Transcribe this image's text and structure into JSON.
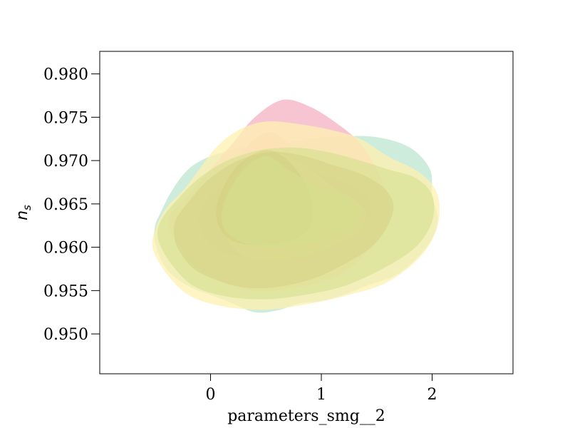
{
  "chart_data": {
    "type": "contour",
    "title": "",
    "xlabel": "parameters_smg__2",
    "ylabel_main": "n",
    "ylabel_sub": "s",
    "xlim": [
      -1.0,
      2.73
    ],
    "ylim": [
      0.9454,
      0.9826
    ],
    "xticks": [
      0,
      1,
      2
    ],
    "xtick_labels": [
      "0",
      "1",
      "2"
    ],
    "yticks": [
      0.95,
      0.955,
      0.96,
      0.965,
      0.97,
      0.975,
      0.98
    ],
    "ytick_labels": [
      "0.950",
      "0.955",
      "0.960",
      "0.965",
      "0.970",
      "0.975",
      "0.980"
    ],
    "grid": false,
    "series": [
      {
        "color": "#b9e4cc",
        "opacity": 0.7,
        "contours": [
          [
            [
              -0.45,
              0.964
            ],
            [
              -0.35,
              0.9665
            ],
            [
              -0.2,
              0.969
            ],
            [
              0.0,
              0.9705
            ],
            [
              0.3,
              0.9715
            ],
            [
              0.6,
              0.9718
            ],
            [
              0.9,
              0.9725
            ],
            [
              1.2,
              0.9728
            ],
            [
              1.5,
              0.9727
            ],
            [
              1.8,
              0.9715
            ],
            [
              1.98,
              0.969
            ],
            [
              2.0,
              0.966
            ],
            [
              2.05,
              0.963
            ],
            [
              1.95,
              0.96
            ],
            [
              1.7,
              0.957
            ],
            [
              1.4,
              0.9555
            ],
            [
              1.2,
              0.9545
            ],
            [
              1.0,
              0.9538
            ],
            [
              0.8,
              0.9535
            ],
            [
              0.6,
              0.9527
            ],
            [
              0.4,
              0.9525
            ],
            [
              0.2,
              0.9535
            ],
            [
              0.0,
              0.9545
            ],
            [
              -0.2,
              0.9555
            ],
            [
              -0.4,
              0.9575
            ],
            [
              -0.5,
              0.9605
            ],
            [
              -0.5,
              0.9625
            ]
          ],
          [
            [
              -0.1,
              0.964
            ],
            [
              0.0,
              0.966
            ],
            [
              0.2,
              0.9675
            ],
            [
              0.5,
              0.9685
            ],
            [
              0.8,
              0.969
            ],
            [
              1.1,
              0.968
            ],
            [
              1.35,
              0.9665
            ],
            [
              1.45,
              0.965
            ],
            [
              1.4,
              0.963
            ],
            [
              1.2,
              0.9615
            ],
            [
              0.9,
              0.96
            ],
            [
              0.6,
              0.959
            ],
            [
              0.35,
              0.9588
            ],
            [
              0.1,
              0.9595
            ],
            [
              -0.05,
              0.961
            ],
            [
              -0.1,
              0.9625
            ]
          ]
        ]
      },
      {
        "color": "#f4b6c6",
        "opacity": 0.8,
        "contours": [
          [
            [
              -0.35,
              0.964
            ],
            [
              -0.2,
              0.966
            ],
            [
              0.0,
              0.969
            ],
            [
              0.2,
              0.972
            ],
            [
              0.4,
              0.975
            ],
            [
              0.65,
              0.977
            ],
            [
              0.9,
              0.9762
            ],
            [
              1.15,
              0.9742
            ],
            [
              1.35,
              0.972
            ],
            [
              1.5,
              0.969
            ],
            [
              1.6,
              0.966
            ],
            [
              1.6,
              0.963
            ],
            [
              1.45,
              0.96
            ],
            [
              1.25,
              0.9575
            ],
            [
              1.0,
              0.956
            ],
            [
              0.7,
              0.9552
            ],
            [
              0.4,
              0.955
            ],
            [
              0.1,
              0.956
            ],
            [
              -0.15,
              0.958
            ],
            [
              -0.3,
              0.9605
            ],
            [
              -0.38,
              0.9625
            ]
          ],
          [
            [
              0.05,
              0.964
            ],
            [
              0.1,
              0.967
            ],
            [
              0.25,
              0.9705
            ],
            [
              0.5,
              0.9732
            ],
            [
              0.7,
              0.972
            ],
            [
              0.85,
              0.969
            ],
            [
              0.95,
              0.966
            ],
            [
              0.95,
              0.963
            ],
            [
              0.8,
              0.961
            ],
            [
              0.55,
              0.9603
            ],
            [
              0.3,
              0.9605
            ],
            [
              0.12,
              0.9615
            ],
            [
              0.05,
              0.9627
            ]
          ]
        ]
      },
      {
        "color": "#fff0b0",
        "opacity": 0.75,
        "contours": [
          [
            [
              -0.5,
              0.962
            ],
            [
              -0.4,
              0.9645
            ],
            [
              -0.25,
              0.9665
            ],
            [
              -0.1,
              0.969
            ],
            [
              0.05,
              0.9715
            ],
            [
              0.25,
              0.9735
            ],
            [
              0.5,
              0.9745
            ],
            [
              0.8,
              0.9742
            ],
            [
              1.1,
              0.9735
            ],
            [
              1.35,
              0.9725
            ],
            [
              1.6,
              0.9705
            ],
            [
              1.9,
              0.9685
            ],
            [
              2.05,
              0.966
            ],
            [
              2.05,
              0.9625
            ],
            [
              1.9,
              0.959
            ],
            [
              1.6,
              0.956
            ],
            [
              1.25,
              0.9545
            ],
            [
              0.9,
              0.9535
            ],
            [
              0.5,
              0.9528
            ],
            [
              0.1,
              0.9532
            ],
            [
              -0.2,
              0.9545
            ],
            [
              -0.4,
              0.957
            ],
            [
              -0.52,
              0.9598
            ]
          ],
          [
            [
              0.1,
              0.964
            ],
            [
              0.2,
              0.968
            ],
            [
              0.45,
              0.971
            ],
            [
              0.7,
              0.9705
            ],
            [
              0.9,
              0.969
            ],
            [
              1.1,
              0.967
            ],
            [
              1.3,
              0.9655
            ],
            [
              1.4,
              0.964
            ],
            [
              1.35,
              0.962
            ],
            [
              1.15,
              0.9605
            ],
            [
              0.85,
              0.959
            ],
            [
              0.55,
              0.9585
            ],
            [
              0.3,
              0.959
            ],
            [
              0.15,
              0.961
            ]
          ]
        ]
      },
      {
        "color": "#c9b46a",
        "opacity": 0.45,
        "contours": [
          [
            [
              -0.3,
              0.9635
            ],
            [
              -0.15,
              0.966
            ],
            [
              0.0,
              0.968
            ],
            [
              0.25,
              0.97
            ],
            [
              0.55,
              0.971
            ],
            [
              0.85,
              0.9705
            ],
            [
              1.1,
              0.9695
            ],
            [
              1.35,
              0.9685
            ],
            [
              1.55,
              0.967
            ],
            [
              1.65,
              0.965
            ],
            [
              1.6,
              0.9625
            ],
            [
              1.45,
              0.96
            ],
            [
              1.2,
              0.958
            ],
            [
              0.95,
              0.9565
            ],
            [
              0.65,
              0.9555
            ],
            [
              0.35,
              0.9553
            ],
            [
              0.1,
              0.956
            ],
            [
              -0.15,
              0.9575
            ],
            [
              -0.3,
              0.96
            ],
            [
              -0.33,
              0.962
            ]
          ],
          [
            [
              0.05,
              0.964
            ],
            [
              0.1,
              0.9665
            ],
            [
              0.25,
              0.9695
            ],
            [
              0.5,
              0.9712
            ],
            [
              0.7,
              0.97
            ],
            [
              0.85,
              0.9675
            ],
            [
              0.92,
              0.965
            ],
            [
              0.9,
              0.9625
            ],
            [
              0.75,
              0.9608
            ],
            [
              0.5,
              0.9603
            ],
            [
              0.25,
              0.9605
            ],
            [
              0.1,
              0.9618
            ]
          ]
        ]
      },
      {
        "color": "#d4e08c",
        "opacity": 0.6,
        "contours": [
          [
            [
              -0.45,
              0.963
            ],
            [
              -0.3,
              0.9655
            ],
            [
              -0.1,
              0.968
            ],
            [
              0.15,
              0.97
            ],
            [
              0.45,
              0.9712
            ],
            [
              0.75,
              0.9715
            ],
            [
              1.05,
              0.971
            ],
            [
              1.35,
              0.97
            ],
            [
              1.6,
              0.969
            ],
            [
              1.85,
              0.968
            ],
            [
              2.0,
              0.966
            ],
            [
              2.0,
              0.963
            ],
            [
              1.85,
              0.96
            ],
            [
              1.55,
              0.9575
            ],
            [
              1.2,
              0.9555
            ],
            [
              0.85,
              0.9545
            ],
            [
              0.5,
              0.954
            ],
            [
              0.15,
              0.9543
            ],
            [
              -0.15,
              0.9555
            ],
            [
              -0.35,
              0.958
            ],
            [
              -0.47,
              0.9608
            ]
          ],
          [
            [
              0.1,
              0.9635
            ],
            [
              0.15,
              0.966
            ],
            [
              0.3,
              0.969
            ],
            [
              0.5,
              0.9705
            ],
            [
              0.7,
              0.969
            ],
            [
              0.95,
              0.967
            ],
            [
              1.2,
              0.966
            ],
            [
              1.35,
              0.9645
            ],
            [
              1.3,
              0.9625
            ],
            [
              1.1,
              0.9612
            ],
            [
              0.85,
              0.9603
            ],
            [
              0.55,
              0.96
            ],
            [
              0.3,
              0.9605
            ],
            [
              0.15,
              0.9617
            ]
          ]
        ]
      }
    ]
  }
}
